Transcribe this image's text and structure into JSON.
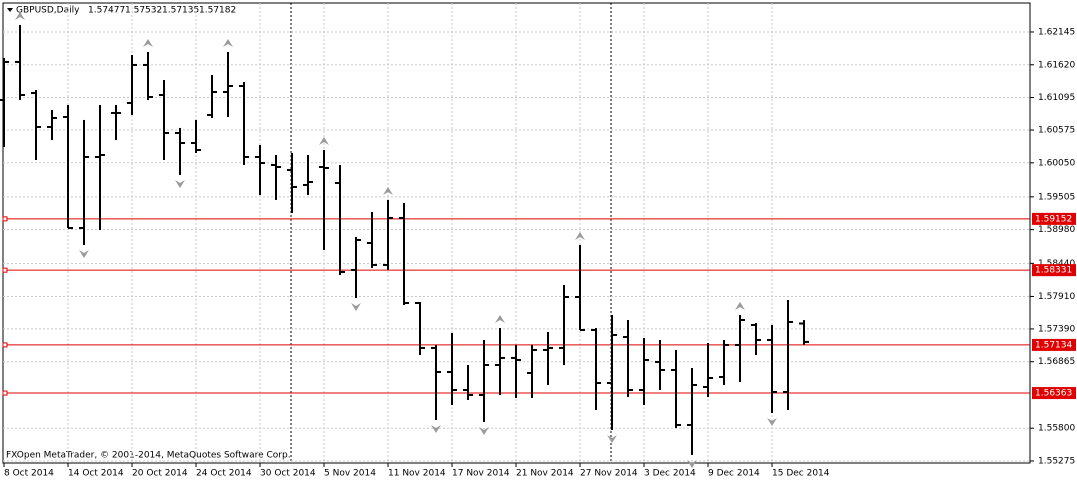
{
  "chart_data": {
    "type": "ohlc",
    "title": "GBPUSD,Daily",
    "footer": "FXOpen MetaTrader, © 2001-2014, MetaQuotes Software Corp.",
    "categories": [
      "8 Oct 2014",
      null,
      null,
      null,
      "14 Oct 2014",
      null,
      null,
      null,
      "20 Oct 2014",
      null,
      null,
      null,
      "24 Oct 2014",
      null,
      null,
      null,
      "30 Oct 2014",
      null,
      null,
      null,
      "5 Nov 2014",
      null,
      null,
      null,
      "11 Nov 2014",
      null,
      null,
      null,
      "17 Nov 2014",
      null,
      null,
      null,
      "21 Nov 2014",
      null,
      null,
      null,
      "27 Nov 2014",
      null,
      null,
      null,
      "3 Dec 2014",
      null,
      null,
      null,
      "9 Dec 2014",
      null,
      null,
      null,
      "15 Dec 2014",
      null,
      null
    ],
    "open": [
      1.61056,
      1.61665,
      1.61168,
      1.60624,
      1.60784,
      1.59006,
      1.60143,
      1.60848,
      1.61008,
      1.61617,
      1.61136,
      1.60528,
      1.60367,
      1.60816,
      1.61184,
      1.6128,
      1.60143,
      1.60015,
      1.59935,
      1.59695,
      1.59983,
      1.59727,
      1.58334,
      1.58766,
      1.58414,
      1.59166,
      1.57805,
      1.57085,
      1.567,
      1.56412,
      1.56332,
      1.56812,
      1.56925,
      1.56684,
      1.57053,
      1.57085,
      1.57901,
      1.57373,
      1.56524,
      1.57261,
      1.56412,
      1.56861,
      1.56732,
      1.55852,
      1.5646,
      1.5662,
      1.57133,
      1.57453,
      1.57213,
      1.5638,
      1.57477
    ],
    "high": [
      1.61729,
      1.62257,
      1.61216,
      1.60896,
      1.60976,
      1.60736,
      1.60976,
      1.60976,
      1.61777,
      1.61825,
      1.61376,
      1.60608,
      1.60736,
      1.61456,
      1.61825,
      1.61344,
      1.60335,
      1.60175,
      1.60207,
      1.60175,
      1.60255,
      1.60015,
      1.58862,
      1.59262,
      1.59455,
      1.59407,
      1.57821,
      1.57133,
      1.57325,
      1.56812,
      1.57213,
      1.57405,
      1.57133,
      1.57133,
      1.57341,
      1.58093,
      1.58734,
      1.57405,
      1.57613,
      1.57533,
      1.57245,
      1.57213,
      1.57053,
      1.56764,
      1.57165,
      1.57213,
      1.57613,
      1.57485,
      1.57453,
      1.57853,
      1.57532
    ],
    "low": [
      1.60303,
      1.61056,
      1.60095,
      1.60416,
      1.59006,
      1.58734,
      1.58974,
      1.60416,
      1.60816,
      1.61056,
      1.60095,
      1.59855,
      1.60207,
      1.60768,
      1.60784,
      1.60015,
      1.59535,
      1.59455,
      1.59246,
      1.59535,
      1.58654,
      1.58254,
      1.57885,
      1.58366,
      1.58334,
      1.57773,
      1.56973,
      1.55932,
      1.56172,
      1.56252,
      1.559,
      1.56332,
      1.56284,
      1.56284,
      1.56492,
      1.56812,
      1.57373,
      1.56092,
      1.55772,
      1.563,
      1.56172,
      1.56412,
      1.55804,
      1.55372,
      1.563,
      1.56492,
      1.5654,
      1.56973,
      1.56044,
      1.56092,
      1.57135
    ],
    "close": [
      1.61665,
      1.61136,
      1.60624,
      1.60768,
      1.59006,
      1.60143,
      1.60175,
      1.60848,
      1.61617,
      1.61104,
      1.60528,
      1.60367,
      1.60255,
      1.61184,
      1.6128,
      1.60143,
      1.60047,
      1.59983,
      1.59663,
      1.59743,
      1.59967,
      1.58302,
      1.58814,
      1.58414,
      1.59166,
      1.57805,
      1.57085,
      1.567,
      1.56412,
      1.56332,
      1.56812,
      1.56925,
      1.56893,
      1.57053,
      1.57085,
      1.57901,
      1.57373,
      1.56524,
      1.57293,
      1.56412,
      1.56893,
      1.56732,
      1.55852,
      1.56492,
      1.56604,
      1.57133,
      1.57533,
      1.57213,
      1.5638,
      1.57501,
      1.57182
    ],
    "fractals_up": [
      null,
      1.62257,
      null,
      null,
      null,
      null,
      null,
      null,
      null,
      1.61825,
      null,
      null,
      null,
      null,
      1.61825,
      null,
      null,
      null,
      null,
      null,
      1.60255,
      null,
      null,
      null,
      1.59455,
      null,
      null,
      null,
      null,
      null,
      null,
      1.57405,
      null,
      null,
      null,
      null,
      1.58734,
      null,
      null,
      null,
      null,
      null,
      null,
      null,
      null,
      null,
      1.57613,
      null,
      null,
      null,
      null
    ],
    "fractals_down": [
      null,
      null,
      null,
      null,
      null,
      1.58734,
      null,
      null,
      null,
      null,
      null,
      1.59855,
      null,
      null,
      null,
      null,
      null,
      null,
      null,
      null,
      null,
      null,
      1.57885,
      null,
      null,
      null,
      null,
      1.55932,
      null,
      null,
      1.559,
      null,
      null,
      null,
      null,
      null,
      null,
      null,
      1.55772,
      null,
      null,
      null,
      null,
      1.55372,
      null,
      null,
      null,
      null,
      1.56044,
      null,
      null
    ],
    "levels": [
      1.59152,
      1.58331,
      1.57134,
      1.56363
    ],
    "level_color": "#e00000",
    "bar_color": "#000000",
    "fractal_color": "#9a9a9a",
    "ylim": [
      1.55243,
      1.62609
    ],
    "yticks": [
      1.62145,
      {
        "value": 1.6162,
        "label": "1.61620"
      },
      1.61095,
      1.60575,
      {
        "value": 1.6005,
        "label": "1.60050"
      },
      1.59505,
      {
        "value": 1.5898,
        "label": "1.58980"
      },
      {
        "value": 1.5844,
        "label": "1.58440"
      },
      {
        "value": 1.5791,
        "label": "1.57910"
      },
      {
        "value": 1.5739,
        "label": "1.57390"
      },
      1.56865,
      {
        "value": 1.558,
        "label": "1.55800"
      },
      1.55275
    ],
    "grid": true
  }
}
